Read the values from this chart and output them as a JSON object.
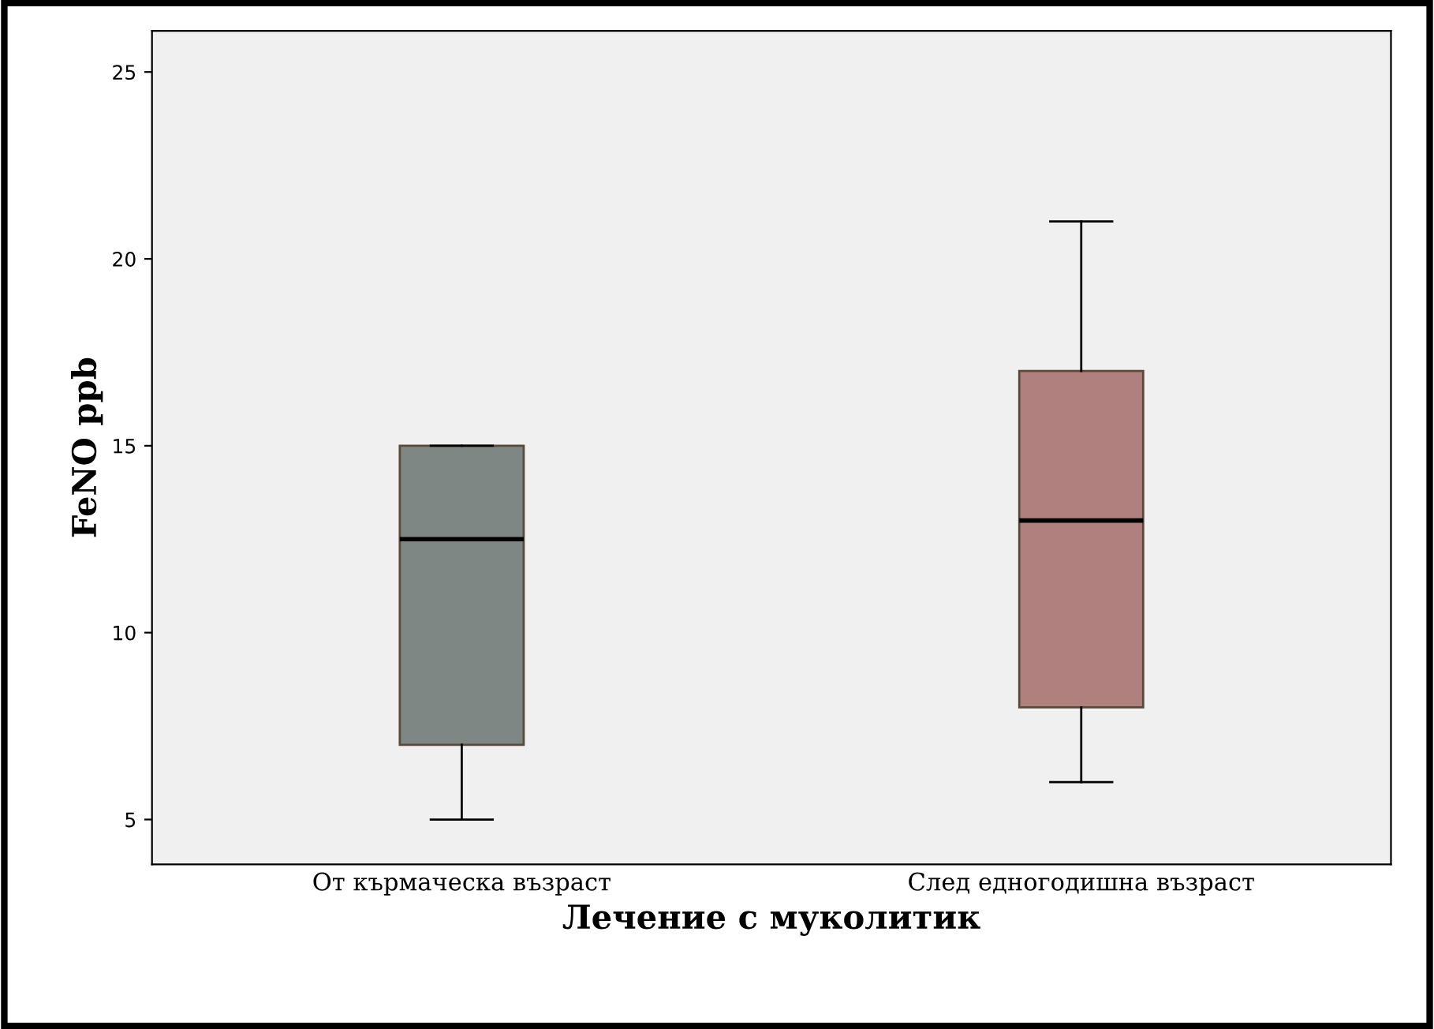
{
  "chart_data": {
    "type": "box",
    "xlabel": "Лечение с муколитик",
    "ylabel": "FeNO ppb",
    "categories": [
      "От кърмаческа възраст",
      "След едногодишна възраст"
    ],
    "boxes": [
      {
        "low": 5,
        "q1": 7,
        "median": 12.5,
        "q3": 15,
        "high": 15
      },
      {
        "low": 6,
        "q1": 8,
        "median": 13,
        "q3": 17,
        "high": 21
      }
    ],
    "colors": [
      "#7f8784",
      "#b0807e"
    ],
    "ylim": [
      3.8,
      26.1
    ],
    "yticks": [
      5,
      10,
      15,
      20,
      25
    ],
    "grid": false,
    "legend": false
  }
}
